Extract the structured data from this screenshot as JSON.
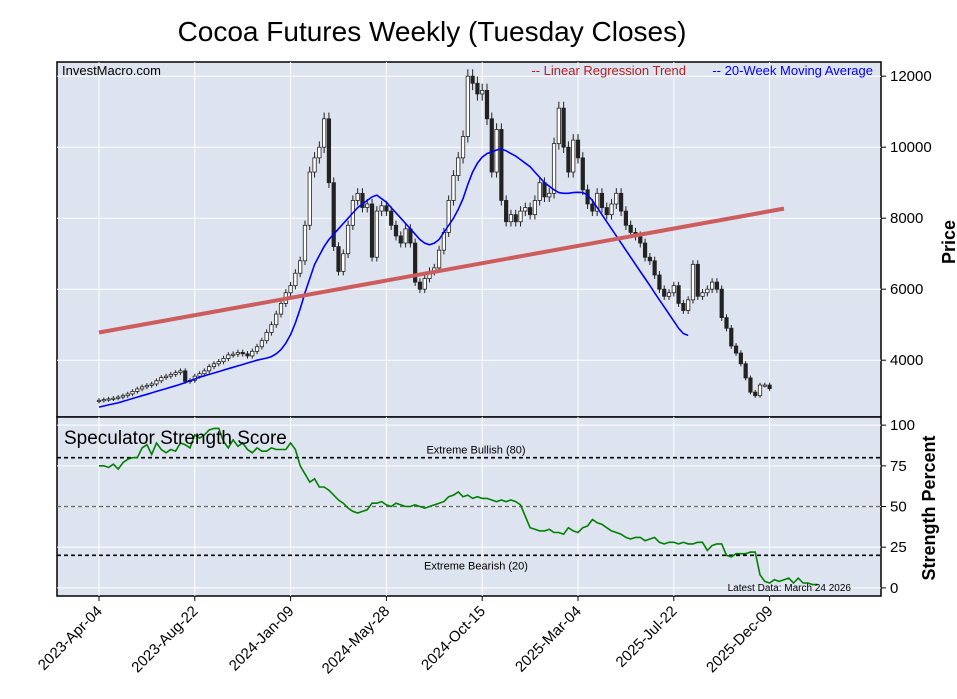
{
  "title": "Cocoa Futures Weekly (Tuesday Closes)",
  "watermark": "InvestMacro.com",
  "legend": {
    "trend": "-- Linear Regression Trend",
    "ma": "-- 20-Week Moving Average",
    "trend_color": "#b22222",
    "ma_color": "#0000ff"
  },
  "colors": {
    "panel_bg": "#dde3ef",
    "regression": "#cd5c5c",
    "moving_average": "#0000ff",
    "strength_line": "#008000",
    "bear_candle": "#222222",
    "bull_candle": "#ffffff"
  },
  "chart_data": [
    {
      "type": "candlestick",
      "ylabel": "Price",
      "y_ticks": [
        "4000",
        "6000",
        "8000",
        "10000",
        "12000"
      ],
      "ylim": [
        2400,
        12400
      ],
      "x_tick_labels": [
        "2023-Apr-04",
        "2023-Aug-22",
        "2024-Jan-09",
        "2024-May-28",
        "2024-Oct-15",
        "2025-Mar-04",
        "2025-Jul-22",
        "2025-Dec-09"
      ],
      "x_tick_weeks": [
        0,
        20,
        40,
        60,
        80,
        100,
        120,
        140
      ],
      "weekly_close": [
        2870,
        2890,
        2910,
        2930,
        2960,
        3000,
        3050,
        3120,
        3190,
        3250,
        3290,
        3330,
        3420,
        3510,
        3550,
        3600,
        3650,
        3700,
        3400,
        3430,
        3550,
        3620,
        3700,
        3820,
        3900,
        3960,
        4050,
        4150,
        4170,
        4220,
        4180,
        4120,
        4250,
        4380,
        4550,
        4780,
        5000,
        5300,
        5600,
        5900,
        6100,
        6450,
        6800,
        7800,
        9300,
        9700,
        10000,
        10800,
        9000,
        7200,
        6500,
        7000,
        7800,
        8500,
        8700,
        8300,
        8400,
        6900,
        8200,
        8350,
        8200,
        7800,
        7500,
        7300,
        7700,
        7300,
        6200,
        6000,
        6300,
        6500,
        6600,
        7100,
        7600,
        8500,
        9200,
        9700,
        10300,
        12000,
        11800,
        11500,
        11600,
        10800,
        9300,
        10500,
        8500,
        7900,
        8100,
        7900,
        8200,
        8300,
        8100,
        8500,
        9000,
        8600,
        8700,
        10100,
        11100,
        10000,
        9300,
        10200,
        9700,
        8800,
        8400,
        8200,
        8700,
        8300,
        8100,
        8400,
        8700,
        8200,
        7800,
        7600,
        7500,
        7300,
        6900,
        6800,
        6400,
        6000,
        5800,
        5900,
        6100,
        5600,
        5400,
        5700,
        6700,
        5800,
        5900,
        6000,
        6200,
        6000,
        5200,
        4900,
        4400,
        4200,
        3900,
        3500,
        3100,
        3000,
        3300,
        3300,
        3200
      ],
      "moving_average": [
        2680,
        2710,
        2740,
        2770,
        2800,
        2840,
        2880,
        2920,
        2960,
        3000,
        3040,
        3080,
        3120,
        3160,
        3200,
        3240,
        3280,
        3320,
        3370,
        3420,
        3470,
        3520,
        3560,
        3600,
        3640,
        3680,
        3720,
        3760,
        3800,
        3840,
        3880,
        3920,
        3960,
        4000,
        4030,
        4060,
        4100,
        4180,
        4300,
        4480,
        4720,
        5050,
        5450,
        5900,
        6300,
        6700,
        6950,
        7200,
        7400,
        7550,
        7700,
        7850,
        8000,
        8150,
        8300,
        8400,
        8500,
        8600,
        8650,
        8550,
        8450,
        8300,
        8150,
        8000,
        7850,
        7700,
        7550,
        7400,
        7300,
        7250,
        7300,
        7400,
        7600,
        7800,
        8000,
        8250,
        8550,
        8950,
        9300,
        9550,
        9720,
        9820,
        9870,
        9920,
        9950,
        9900,
        9820,
        9750,
        9650,
        9550,
        9450,
        9300,
        9150,
        9000,
        8900,
        8800,
        8720,
        8700,
        8700,
        8720,
        8730,
        8720,
        8650,
        8500,
        8300,
        8100,
        7900,
        7700,
        7500,
        7300,
        7100,
        6900,
        6700,
        6500,
        6300,
        6100,
        5900,
        5700,
        5500,
        5300,
        5100,
        4900,
        4750,
        4700
      ],
      "ma_start_week": 0,
      "regression": {
        "start": [
          0,
          4780
        ],
        "end": [
          143,
          8270
        ]
      },
      "watermark": "InvestMacro.com"
    },
    {
      "type": "line",
      "title": "Speculator Strength Score",
      "ylabel": "Strength Percent",
      "y_ticks": [
        "0",
        "25",
        "50",
        "75",
        "100"
      ],
      "ylim": [
        -5,
        105
      ],
      "reference_lines": [
        {
          "value": 80,
          "label": "Extreme Bullish (80)"
        },
        {
          "value": 50,
          "label": ""
        },
        {
          "value": 20,
          "label": "Extreme Bearish (20)"
        }
      ],
      "footnote": "Latest Data: March 24 2026",
      "values": [
        75,
        75,
        74,
        76,
        73,
        77,
        79,
        80,
        80,
        86,
        88,
        82,
        89,
        85,
        83,
        85,
        84,
        89,
        88,
        86,
        94,
        92,
        94,
        97,
        98,
        98,
        90,
        86,
        91,
        87,
        89,
        85,
        83,
        86,
        84,
        84,
        86,
        85,
        85,
        85,
        89,
        85,
        75,
        70,
        65,
        67,
        62,
        62,
        60,
        57,
        54,
        52,
        49,
        47,
        46,
        47,
        48,
        52,
        52,
        53,
        51,
        50,
        52,
        51,
        50,
        50,
        51,
        50,
        49,
        50,
        51,
        52,
        53,
        56,
        57,
        59,
        56,
        57,
        55,
        56,
        55,
        55,
        54,
        53,
        54,
        53,
        54,
        53,
        51,
        44,
        37,
        36,
        35,
        35,
        36,
        34,
        34,
        33,
        37,
        35,
        34,
        37,
        38,
        42,
        40,
        39,
        37,
        35,
        34,
        33,
        31,
        30,
        31,
        31,
        29,
        30,
        31,
        28,
        27,
        28,
        28,
        27,
        28,
        27,
        27,
        28,
        28,
        23,
        26,
        27,
        27,
        20,
        19,
        21,
        21,
        21,
        22,
        22,
        8,
        4,
        3,
        5,
        4,
        5,
        6,
        3,
        6,
        3,
        3,
        2,
        2
      ]
    }
  ]
}
